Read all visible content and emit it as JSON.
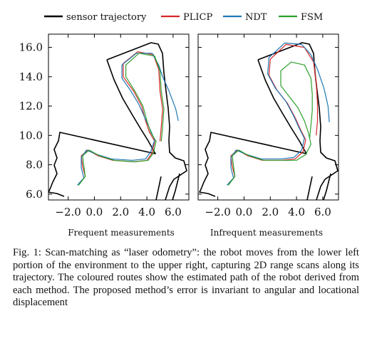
{
  "caption": "Fig. 1: Scan-matching as “laser odometry”: the robot moves from the lower left portion of the environment to the upper right, capturing 2D range scans along its trajectory. The coloured routes show the estimated path of the robot derived from each method. The proposed method’s error is invariant to angular and locational displacement",
  "chart_data": {
    "type": "line",
    "legend": {
      "placement": "top",
      "entries": [
        {
          "name": "sensor trajectory",
          "color": "#000000"
        },
        {
          "name": "PLICP",
          "color": "#d62728"
        },
        {
          "name": "NDT",
          "color": "#1f77b4"
        },
        {
          "name": "FSM",
          "color": "#2ca02c"
        }
      ]
    },
    "y_ticks": [
      "6.0",
      "8.0",
      "10.0",
      "12.0",
      "14.0",
      "16.0"
    ],
    "y_tick_values": [
      6,
      8,
      10,
      12,
      14,
      16
    ],
    "x_ticks": [
      "−2.0",
      "0.0",
      "2.0",
      "4.0",
      "6.0"
    ],
    "x_tick_values": [
      -2,
      0,
      2,
      4,
      6
    ],
    "xlim": [
      -3.5,
      7.2
    ],
    "ylim": [
      5.6,
      16.9
    ],
    "panels": [
      {
        "title": "Frequent measurements",
        "series": [
          {
            "color": "#d62728",
            "points": [
              [
                -1.2,
                6.7
              ],
              [
                -0.7,
                7.2
              ],
              [
                -0.9,
                7.9
              ],
              [
                -1.0,
                8.6
              ],
              [
                -0.5,
                9.0
              ],
              [
                0.3,
                8.6
              ],
              [
                1.4,
                8.3
              ],
              [
                3.0,
                8.2
              ],
              [
                4.0,
                8.3
              ],
              [
                4.4,
                8.8
              ],
              [
                4.6,
                9.6
              ],
              [
                4.2,
                10.2
              ],
              [
                3.9,
                11.0
              ],
              [
                3.6,
                12.0
              ],
              [
                3.0,
                13.0
              ],
              [
                2.2,
                14.0
              ],
              [
                2.2,
                14.9
              ],
              [
                3.3,
                15.7
              ],
              [
                4.5,
                15.5
              ],
              [
                4.9,
                14.5
              ],
              [
                5.0,
                13.0
              ],
              [
                5.2,
                11.8
              ],
              [
                5.1,
                10.6
              ],
              [
                5.0,
                9.6
              ]
            ]
          },
          {
            "color": "#1f77b4",
            "points": [
              [
                -1.3,
                6.6
              ],
              [
                -0.8,
                7.1
              ],
              [
                -1.0,
                7.8
              ],
              [
                -1.0,
                8.5
              ],
              [
                -0.6,
                9.0
              ],
              [
                0.2,
                8.7
              ],
              [
                1.3,
                8.4
              ],
              [
                2.9,
                8.3
              ],
              [
                3.9,
                8.4
              ],
              [
                4.3,
                8.9
              ],
              [
                4.6,
                9.7
              ],
              [
                4.3,
                10.3
              ],
              [
                3.9,
                11.1
              ],
              [
                3.4,
                12.1
              ],
              [
                2.8,
                13.0
              ],
              [
                2.1,
                13.9
              ],
              [
                2.1,
                14.8
              ],
              [
                3.2,
                15.6
              ],
              [
                4.4,
                15.6
              ],
              [
                4.9,
                14.8
              ],
              [
                5.2,
                14.0
              ],
              [
                5.7,
                13.0
              ],
              [
                6.2,
                11.8
              ],
              [
                6.4,
                11.0
              ]
            ]
          },
          {
            "color": "#2ca02c",
            "points": [
              [
                -1.2,
                6.6
              ],
              [
                -0.7,
                7.2
              ],
              [
                -0.8,
                7.9
              ],
              [
                -0.9,
                8.6
              ],
              [
                -0.4,
                9.0
              ],
              [
                0.4,
                8.6
              ],
              [
                1.5,
                8.3
              ],
              [
                3.1,
                8.2
              ],
              [
                4.1,
                8.3
              ],
              [
                4.5,
                8.8
              ],
              [
                4.7,
                9.6
              ],
              [
                4.3,
                10.2
              ],
              [
                4.0,
                11.0
              ],
              [
                3.7,
                12.0
              ],
              [
                3.1,
                13.0
              ],
              [
                2.4,
                14.0
              ],
              [
                2.4,
                14.8
              ],
              [
                3.4,
                15.6
              ],
              [
                4.6,
                15.4
              ],
              [
                5.0,
                14.4
              ],
              [
                5.1,
                13.0
              ],
              [
                5.3,
                11.8
              ],
              [
                5.2,
                10.6
              ],
              [
                5.1,
                9.6
              ]
            ]
          }
        ]
      },
      {
        "title": "Infrequent measurements",
        "series": [
          {
            "color": "#d62728",
            "points": [
              [
                -1.2,
                6.7
              ],
              [
                -0.7,
                7.2
              ],
              [
                -0.9,
                7.9
              ],
              [
                -1.0,
                8.6
              ],
              [
                -0.5,
                9.0
              ],
              [
                0.3,
                8.6
              ],
              [
                1.4,
                8.3
              ],
              [
                2.8,
                8.3
              ],
              [
                3.9,
                8.4
              ],
              [
                4.5,
                8.9
              ],
              [
                4.7,
                9.7
              ],
              [
                4.3,
                10.4
              ],
              [
                3.9,
                11.2
              ],
              [
                3.3,
                12.2
              ],
              [
                2.5,
                13.1
              ],
              [
                1.9,
                14.1
              ],
              [
                2.0,
                15.2
              ],
              [
                3.2,
                16.2
              ],
              [
                4.6,
                16.0
              ],
              [
                5.3,
                15.0
              ],
              [
                5.5,
                13.6
              ],
              [
                5.6,
                12.2
              ],
              [
                5.6,
                11.0
              ],
              [
                5.5,
                10.0
              ]
            ]
          },
          {
            "color": "#1f77b4",
            "points": [
              [
                -1.3,
                6.6
              ],
              [
                -0.8,
                7.1
              ],
              [
                -1.0,
                7.8
              ],
              [
                -1.0,
                8.5
              ],
              [
                -0.6,
                9.0
              ],
              [
                0.2,
                8.7
              ],
              [
                1.3,
                8.4
              ],
              [
                2.8,
                8.4
              ],
              [
                3.8,
                8.5
              ],
              [
                4.4,
                9.0
              ],
              [
                4.6,
                9.8
              ],
              [
                4.2,
                10.5
              ],
              [
                3.8,
                11.3
              ],
              [
                3.2,
                12.3
              ],
              [
                2.4,
                13.2
              ],
              [
                1.8,
                14.2
              ],
              [
                1.9,
                15.3
              ],
              [
                3.1,
                16.3
              ],
              [
                4.4,
                16.2
              ],
              [
                5.1,
                15.5
              ],
              [
                5.6,
                14.5
              ],
              [
                6.1,
                13.2
              ],
              [
                6.4,
                12.0
              ],
              [
                6.5,
                10.9
              ]
            ]
          },
          {
            "color": "#2ca02c",
            "points": [
              [
                -1.2,
                6.6
              ],
              [
                -0.7,
                7.2
              ],
              [
                -0.8,
                7.9
              ],
              [
                -0.9,
                8.6
              ],
              [
                -0.4,
                9.0
              ],
              [
                0.4,
                8.6
              ],
              [
                1.5,
                8.3
              ],
              [
                2.9,
                8.3
              ],
              [
                4.0,
                8.3
              ],
              [
                4.7,
                8.7
              ],
              [
                5.1,
                9.4
              ],
              [
                4.9,
                10.2
              ],
              [
                4.6,
                11.0
              ],
              [
                4.1,
                11.9
              ],
              [
                3.4,
                12.7
              ],
              [
                2.8,
                13.4
              ],
              [
                2.8,
                14.4
              ],
              [
                3.6,
                15.0
              ],
              [
                4.6,
                14.8
              ],
              [
                5.1,
                13.9
              ],
              [
                5.2,
                12.8
              ],
              [
                5.2,
                11.7
              ],
              [
                5.1,
                10.7
              ],
              [
                5.0,
                9.8
              ]
            ]
          }
        ]
      }
    ]
  }
}
